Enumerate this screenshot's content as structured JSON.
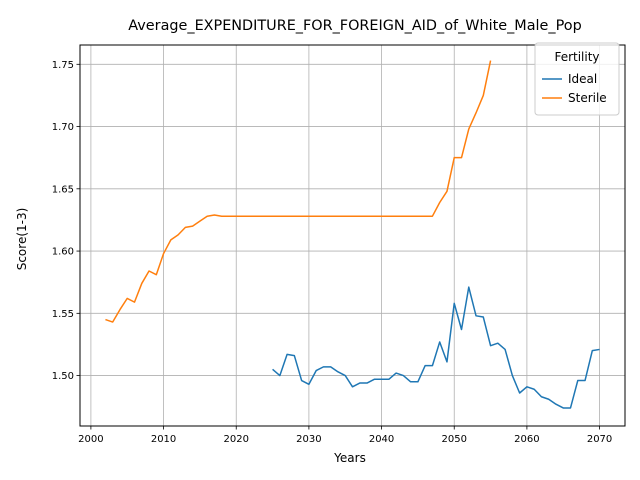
{
  "chart_data": {
    "type": "line",
    "title": "Average_EXPENDITURE_FOR_FOREIGN_AID_of_White_Male_Pop",
    "xlabel": "Years",
    "ylabel": "Score(1-3)",
    "xlim": [
      1998.5,
      2073.5
    ],
    "ylim": [
      1.4595,
      1.7655
    ],
    "xticks": [
      2000,
      2010,
      2020,
      2030,
      2040,
      2050,
      2060,
      2070
    ],
    "yticks": [
      1.5,
      1.55,
      1.6,
      1.65,
      1.7,
      1.75
    ],
    "xtick_labels": [
      "2000",
      "2010",
      "2020",
      "2030",
      "2040",
      "2050",
      "2060",
      "2070"
    ],
    "ytick_labels": [
      "1.50",
      "1.55",
      "1.60",
      "1.65",
      "1.70",
      "1.75"
    ],
    "grid": true,
    "legend": {
      "title": "Fertility",
      "position": "top-right"
    },
    "series": [
      {
        "name": "Ideal",
        "color": "#1f77b4",
        "x": [
          2025,
          2026,
          2027,
          2028,
          2029,
          2030,
          2031,
          2032,
          2033,
          2034,
          2035,
          2036,
          2037,
          2038,
          2039,
          2040,
          2041,
          2042,
          2043,
          2044,
          2045,
          2046,
          2047,
          2048,
          2049,
          2050,
          2051,
          2052,
          2053,
          2054,
          2055,
          2056,
          2057,
          2058,
          2059,
          2060,
          2061,
          2062,
          2063,
          2064,
          2065,
          2066,
          2067,
          2068,
          2069,
          2070
        ],
        "values": [
          1.505,
          1.5,
          1.517,
          1.516,
          1.496,
          1.493,
          1.504,
          1.507,
          1.507,
          1.503,
          1.5,
          1.491,
          1.494,
          1.494,
          1.497,
          1.497,
          1.497,
          1.502,
          1.5,
          1.495,
          1.495,
          1.508,
          1.508,
          1.527,
          1.511,
          1.558,
          1.537,
          1.571,
          1.548,
          1.547,
          1.524,
          1.526,
          1.521,
          1.5,
          1.486,
          1.491,
          1.489,
          1.483,
          1.481,
          1.477,
          1.474,
          1.474,
          1.496,
          1.496,
          1.52,
          1.521
        ]
      },
      {
        "name": "Sterile",
        "color": "#ff7f0e",
        "x": [
          2002,
          2003,
          2004,
          2005,
          2006,
          2007,
          2008,
          2009,
          2010,
          2011,
          2012,
          2013,
          2014,
          2015,
          2016,
          2017,
          2018,
          2019,
          2020,
          2021,
          2022,
          2023,
          2024,
          2025,
          2026,
          2027,
          2028,
          2029,
          2030,
          2031,
          2032,
          2033,
          2034,
          2035,
          2036,
          2037,
          2038,
          2039,
          2040,
          2041,
          2042,
          2043,
          2044,
          2045,
          2046,
          2047,
          2048,
          2049,
          2050,
          2051,
          2052,
          2053,
          2054,
          2055
        ],
        "values": [
          1.545,
          1.543,
          1.553,
          1.562,
          1.559,
          1.574,
          1.584,
          1.581,
          1.598,
          1.609,
          1.613,
          1.619,
          1.62,
          1.624,
          1.628,
          1.629,
          1.628,
          1.628,
          1.628,
          1.628,
          1.628,
          1.628,
          1.628,
          1.628,
          1.628,
          1.628,
          1.628,
          1.628,
          1.628,
          1.628,
          1.628,
          1.628,
          1.628,
          1.628,
          1.628,
          1.628,
          1.628,
          1.628,
          1.628,
          1.628,
          1.628,
          1.628,
          1.628,
          1.628,
          1.628,
          1.628,
          1.639,
          1.648,
          1.675,
          1.675,
          1.698,
          1.711,
          1.725,
          1.753
        ]
      }
    ]
  }
}
